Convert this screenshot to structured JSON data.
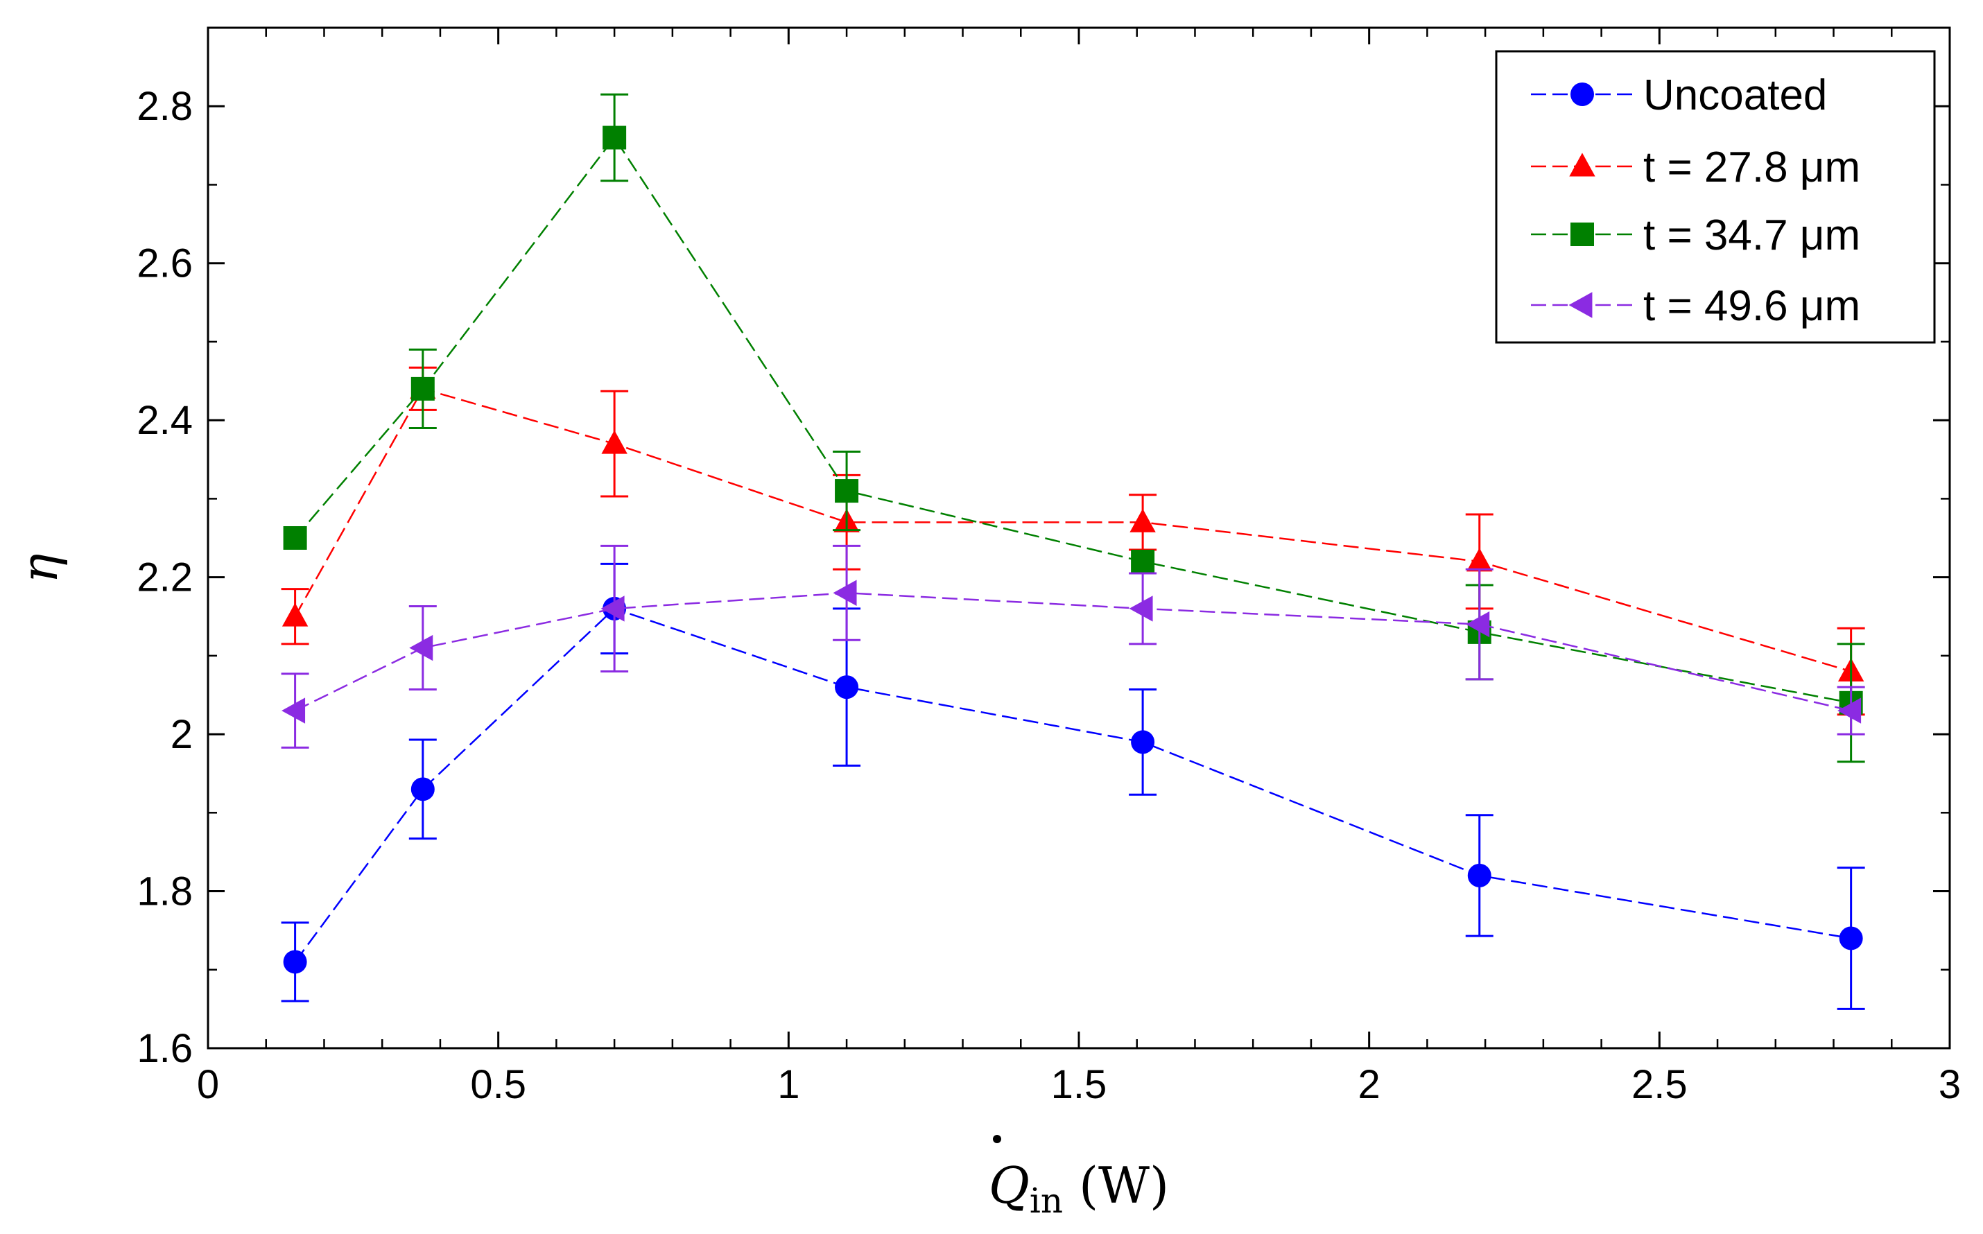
{
  "chart_data": {
    "type": "line",
    "title": "",
    "xlabel": {
      "symbol": "Q",
      "subscript": "in",
      "unit": "(W)"
    },
    "ylabel": "η",
    "xlim": [
      0,
      3
    ],
    "ylim": [
      1.6,
      2.9
    ],
    "x_ticks": [
      "0",
      "0.5",
      "1",
      "1.5",
      "2",
      "2.5",
      "3"
    ],
    "x_tick_values": [
      0,
      0.5,
      1,
      1.5,
      2,
      2.5,
      3
    ],
    "y_ticks": [
      "1.6",
      "1.8",
      "2",
      "2.2",
      "2.4",
      "2.6",
      "2.8"
    ],
    "y_tick_values": [
      1.6,
      1.8,
      2.0,
      2.2,
      2.4,
      2.6,
      2.8
    ],
    "grid": false,
    "legend_position": "top-right",
    "x": [
      0.15,
      0.37,
      0.7,
      1.1,
      1.61,
      2.19,
      2.83
    ],
    "series": [
      {
        "name": "Uncoated",
        "color": "#0000ff",
        "marker": "circle",
        "values": [
          1.71,
          1.93,
          2.16,
          2.06,
          1.99,
          1.82,
          1.74
        ],
        "errors": [
          0.05,
          0.063,
          0.057,
          0.1,
          0.067,
          0.077,
          0.09
        ]
      },
      {
        "name": "t = 27.8 μm",
        "color": "#ff0000",
        "marker": "triangle-up",
        "values": [
          2.15,
          2.44,
          2.37,
          2.27,
          2.27,
          2.22,
          2.08
        ],
        "errors": [
          0.035,
          0.027,
          0.067,
          0.06,
          0.035,
          0.06,
          0.055
        ]
      },
      {
        "name": "t = 34.7 μm",
        "color": "#008000",
        "marker": "square",
        "values": [
          2.25,
          2.44,
          2.76,
          2.31,
          2.22,
          2.13,
          2.04
        ],
        "errors": [
          0.0,
          0.05,
          0.055,
          0.05,
          0.0,
          0.06,
          0.075
        ]
      },
      {
        "name": "t = 49.6 μm",
        "color": "#8b2be2",
        "marker": "triangle-left",
        "values": [
          2.03,
          2.11,
          2.16,
          2.18,
          2.16,
          2.14,
          2.03
        ],
        "errors": [
          0.047,
          0.053,
          0.08,
          0.06,
          0.045,
          0.07,
          0.03
        ]
      }
    ]
  }
}
